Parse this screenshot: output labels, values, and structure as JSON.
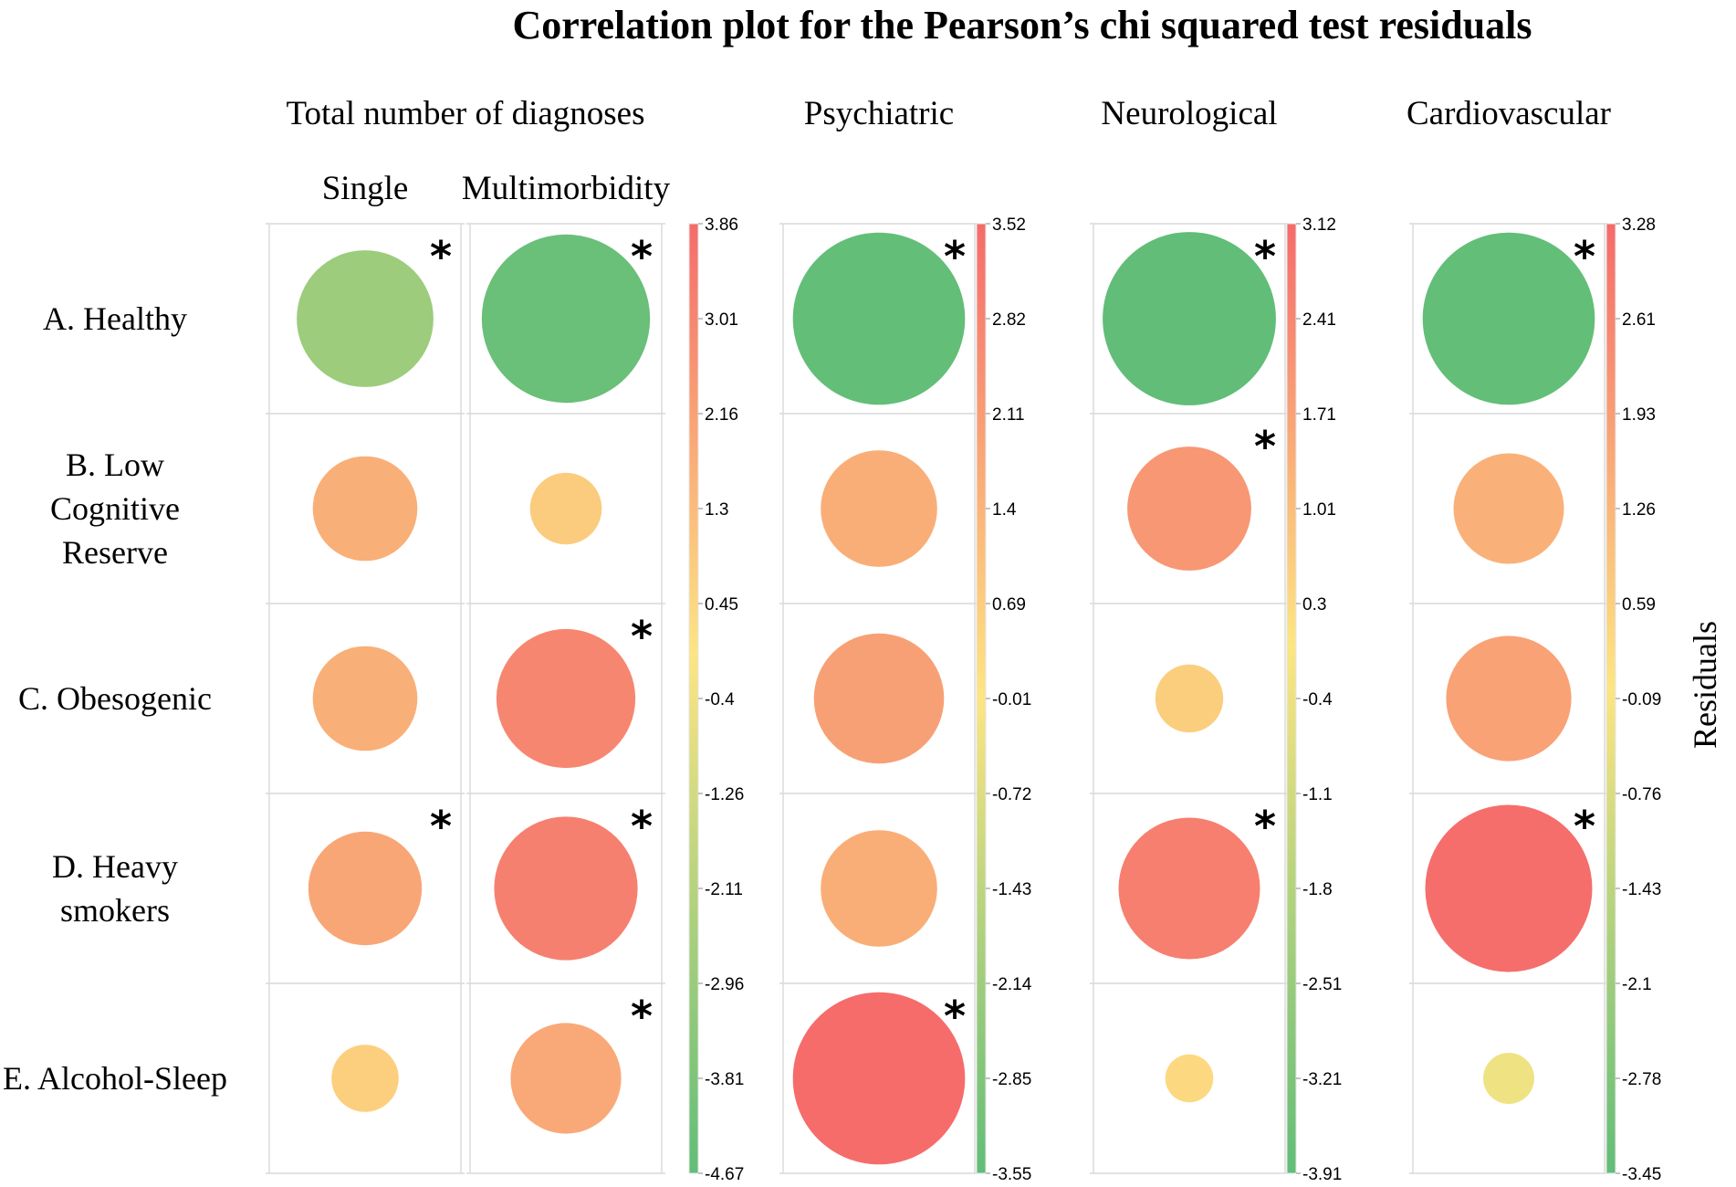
{
  "chart_data": {
    "type": "bubble-matrix",
    "title": "Correlation plot for the Pearson’s chi squared test residuals",
    "legend_title": "Residuals",
    "rows": [
      "A. Healthy",
      "B. Low Cognitive Reserve",
      "C. Obesogenic",
      "D. Heavy smokers",
      "E. Alcohol-Sleep"
    ],
    "row_label_lines": [
      [
        "A. Healthy"
      ],
      [
        "B. Low",
        "Cognitive",
        "Reserve"
      ],
      [
        "C. Obesogenic"
      ],
      [
        "D. Heavy",
        "smokers"
      ],
      [
        "E. Alcohol-Sleep"
      ]
    ],
    "panels": [
      {
        "group": "Total number of diagnoses",
        "columns": [
          {
            "name": "Single",
            "values": [
              -2.9,
              1.7,
              1.7,
              2.0,
              0.7
            ],
            "significant": [
              true,
              false,
              false,
              true,
              false
            ]
          },
          {
            "name": "Multimorbidity",
            "values": [
              -4.4,
              0.8,
              3.0,
              3.2,
              1.9
            ],
            "significant": [
              true,
              false,
              true,
              true,
              true
            ]
          }
        ],
        "colorbar": {
          "min": -4.67,
          "max": 3.86,
          "ticks": [
            "3.86",
            "3.01",
            "2.16",
            "1.3",
            "0.45",
            "-0.4",
            "-1.26",
            "-2.11",
            "-2.96",
            "-3.81",
            "-4.67"
          ]
        }
      },
      {
        "group": "Psychiatric",
        "columns": [
          {
            "name": "",
            "values": [
              -3.5,
              1.6,
              2.0,
              1.6,
              3.5
            ],
            "significant": [
              true,
              false,
              false,
              false,
              true
            ]
          }
        ],
        "colorbar": {
          "min": -3.55,
          "max": 3.52,
          "ticks": [
            "3.52",
            "2.82",
            "2.11",
            "1.4",
            "0.69",
            "-0.01",
            "-0.72",
            "-1.43",
            "-2.14",
            "-2.85",
            "-3.55"
          ]
        }
      },
      {
        "group": "Neurological",
        "columns": [
          {
            "name": "",
            "values": [
              -3.9,
              2.0,
              0.6,
              2.6,
              0.3
            ],
            "significant": [
              true,
              true,
              false,
              true,
              false
            ]
          }
        ],
        "colorbar": {
          "min": -3.91,
          "max": 3.12,
          "ticks": [
            "3.12",
            "2.41",
            "1.71",
            "1.01",
            "0.3",
            "-0.4",
            "-1.1",
            "-1.8",
            "-2.51",
            "-3.21",
            "-3.91"
          ]
        }
      },
      {
        "group": "Cardiovascular",
        "columns": [
          {
            "name": "",
            "values": [
              -3.4,
              1.4,
              1.8,
              3.2,
              -0.3
            ],
            "significant": [
              true,
              false,
              false,
              true,
              false
            ]
          }
        ],
        "colorbar": {
          "min": -3.45,
          "max": 3.28,
          "ticks": [
            "3.28",
            "2.61",
            "1.93",
            "1.26",
            "0.59",
            "-0.09",
            "-0.76",
            "-1.43",
            "-2.1",
            "-2.78",
            "-3.45"
          ]
        }
      }
    ],
    "significance_marker": "*",
    "colors": {
      "negative": "#61bd78",
      "neutral": "#fde583",
      "positive": "#f56b6b"
    }
  }
}
